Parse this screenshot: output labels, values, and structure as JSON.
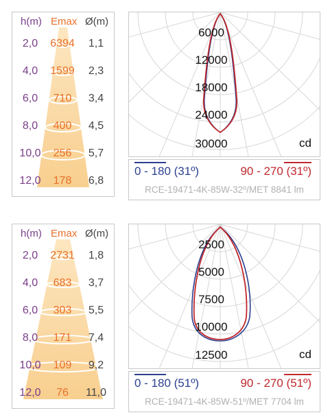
{
  "table_headers": {
    "height": "h(m)",
    "emax": "Emax",
    "diameter": "Ø(m)"
  },
  "units_label": "cd",
  "diagrams": [
    {
      "rows": [
        {
          "h": "2,0",
          "emax": "6394",
          "d": "1,1"
        },
        {
          "h": "4,0",
          "emax": "1599",
          "d": "2,3"
        },
        {
          "h": "6,0",
          "emax": "710",
          "d": "3,4"
        },
        {
          "h": "8,0",
          "emax": "400",
          "d": "4,5"
        },
        {
          "h": "10,0",
          "emax": "256",
          "d": "5,7"
        },
        {
          "h": "12,0",
          "emax": "178",
          "d": "6,8"
        }
      ],
      "intensity_labels": [
        "6000",
        "12000",
        "18000",
        "24000",
        "30000"
      ],
      "legend_left": "0 - 180 (31º)",
      "legend_right": "90 - 270 (31º)",
      "model": "RCE-19471-4K-85W-32º/MET 8841 lm",
      "colors": {
        "c0_180": "#2a3f8f",
        "c90_270": "#c0282d"
      }
    },
    {
      "rows": [
        {
          "h": "2,0",
          "emax": "2731",
          "d": "1,8"
        },
        {
          "h": "4,0",
          "emax": "683",
          "d": "3,7"
        },
        {
          "h": "6,0",
          "emax": "303",
          "d": "5,5"
        },
        {
          "h": "8,0",
          "emax": "171",
          "d": "7,4"
        },
        {
          "h": "10,0",
          "emax": "109",
          "d": "9,2"
        },
        {
          "h": "12,0",
          "emax": "76",
          "d": "11,0"
        }
      ],
      "intensity_labels": [
        "2500",
        "5000",
        "7500",
        "10000",
        "12500"
      ],
      "legend_left": "0 - 180 (51º)",
      "legend_right": "90 - 270 (51º)",
      "model": "RCE-19471-4K-85W-51º/MET 7704 lm",
      "colors": {
        "c0_180": "#2a3f8f",
        "c90_270": "#c0282d"
      }
    }
  ]
}
